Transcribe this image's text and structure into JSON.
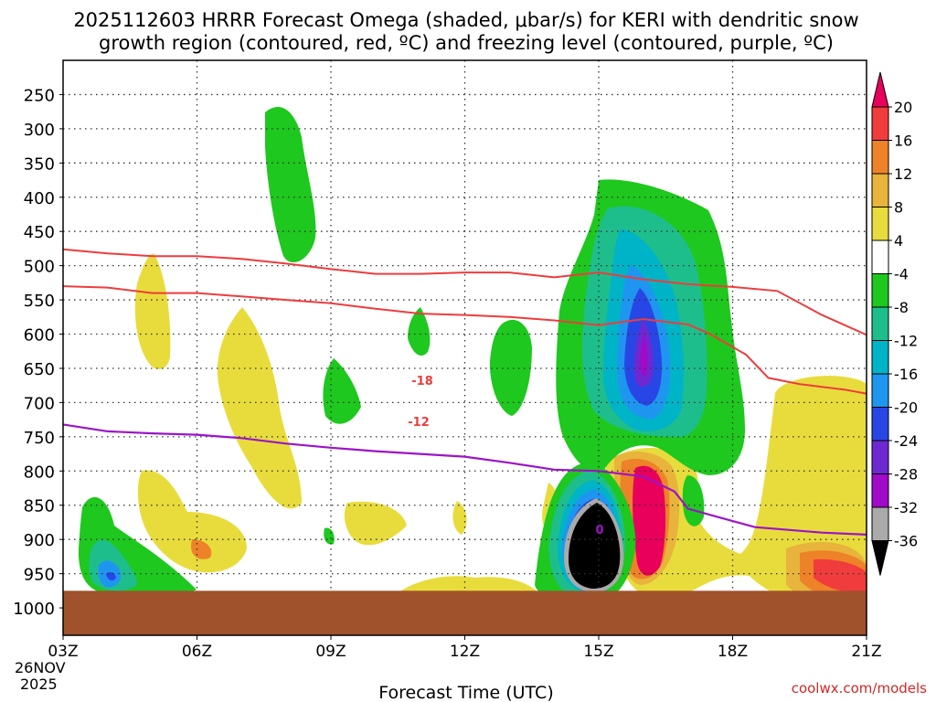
{
  "chart_data": {
    "type": "heatmap",
    "title_line1": "2025112603 HRRR Forecast Omega (shaded, μbar/s) for KERI with dendritic snow",
    "title_line2": "growth region (contoured, red, ºC) and freezing level (contoured, purple, ºC)",
    "xlabel": "Forecast Time (UTC)",
    "date_label": "26NOV",
    "year_label": "2025",
    "credit": "coolwx.com/models",
    "station": "KERI",
    "init_time": "2025112603",
    "x_ticks": [
      "03Z",
      "06Z",
      "09Z",
      "12Z",
      "15Z",
      "18Z",
      "21Z"
    ],
    "x_range_hours": [
      3,
      21
    ],
    "y_ticks": [
      250,
      300,
      350,
      400,
      450,
      500,
      550,
      600,
      650,
      700,
      750,
      800,
      850,
      900,
      950,
      1000
    ],
    "y_range_hpa": [
      200,
      1040
    ],
    "ground_level_hpa": 975,
    "colorbar": {
      "labels": [
        "20",
        "16",
        "12",
        "8",
        "4",
        "-4",
        "-8",
        "-12",
        "-16",
        "-20",
        "-24",
        "-28",
        "-32",
        "-36"
      ],
      "colors": [
        "#e8005a",
        "#f03c3c",
        "#ee8228",
        "#e8b43c",
        "#e8dc3c",
        "#ffffff",
        "#1ec81e",
        "#1ebe8c",
        "#00b4c8",
        "#1e96f0",
        "#2846e6",
        "#6e28d2",
        "#a00ac8",
        "#aaaaaa",
        "#000000"
      ]
    },
    "contours": {
      "minus18": {
        "label": "-18",
        "points": [
          [
            3,
            476
          ],
          [
            4,
            482
          ],
          [
            5,
            486
          ],
          [
            6,
            486
          ],
          [
            7,
            490
          ],
          [
            8,
            497
          ],
          [
            9,
            505
          ],
          [
            10,
            512
          ],
          [
            11,
            512
          ],
          [
            12,
            510
          ],
          [
            13,
            510
          ],
          [
            14,
            517
          ],
          [
            15,
            510
          ],
          [
            16,
            520
          ],
          [
            17,
            527
          ],
          [
            18,
            531
          ],
          [
            19,
            537
          ],
          [
            20,
            572
          ],
          [
            21,
            601
          ]
        ]
      },
      "minus12": {
        "label": "-12",
        "points": [
          [
            3,
            530
          ],
          [
            4,
            532
          ],
          [
            5,
            540
          ],
          [
            6,
            540
          ],
          [
            7,
            545
          ],
          [
            8,
            550
          ],
          [
            9,
            555
          ],
          [
            10,
            563
          ],
          [
            11,
            570
          ],
          [
            12,
            572
          ],
          [
            13,
            575
          ],
          [
            14,
            580
          ],
          [
            15,
            587
          ],
          [
            16,
            578
          ],
          [
            17,
            586
          ],
          [
            17.5,
            600
          ],
          [
            18.3,
            630
          ],
          [
            18.8,
            664
          ],
          [
            19.5,
            673
          ],
          [
            20.5,
            681
          ],
          [
            21,
            687
          ]
        ]
      },
      "freezing": {
        "label": "0",
        "points": [
          [
            3,
            732
          ],
          [
            4,
            742
          ],
          [
            5,
            745
          ],
          [
            6,
            747
          ],
          [
            7,
            752
          ],
          [
            8,
            760
          ],
          [
            9,
            766
          ],
          [
            10,
            771
          ],
          [
            11,
            775
          ],
          [
            12,
            779
          ],
          [
            13,
            788
          ],
          [
            14,
            798
          ],
          [
            15,
            800
          ],
          [
            16,
            808
          ],
          [
            16.7,
            830
          ],
          [
            17,
            855
          ],
          [
            17.6,
            866
          ],
          [
            18.5,
            882
          ],
          [
            20,
            890
          ],
          [
            21,
            893
          ]
        ]
      }
    }
  }
}
